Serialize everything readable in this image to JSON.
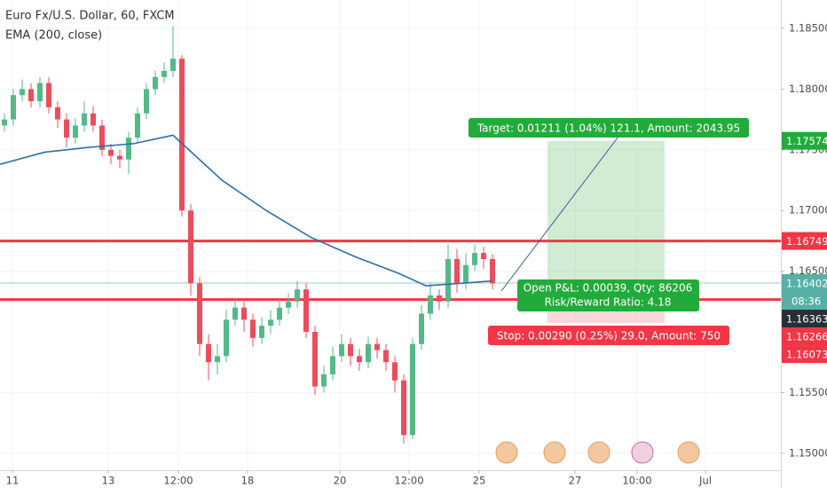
{
  "chart_data": {
    "type": "candlestick",
    "title": "Euro Fx/U.S. Dollar, 60, FXCM",
    "candles": {
      "up_color": "#53b987",
      "down_color": "#eb4d5c",
      "open": [
        1.177,
        1.1775,
        1.1795,
        1.18,
        1.179,
        1.1805,
        1.1785,
        1.1775,
        1.176,
        1.177,
        1.178,
        1.177,
        1.175,
        1.1745,
        1.1742,
        1.176,
        1.178,
        1.18,
        1.181,
        1.1815,
        1.1825,
        1.17,
        1.164,
        1.159,
        1.1575,
        1.158,
        1.161,
        1.162,
        1.161,
        1.1595,
        1.1605,
        1.161,
        1.162,
        1.1625,
        1.1635,
        1.16,
        1.1555,
        1.1565,
        1.158,
        1.159,
        1.158,
        1.1575,
        1.159,
        1.1585,
        1.1575,
        1.156,
        1.1515,
        1.159,
        1.1615,
        1.163,
        1.1625,
        1.166,
        1.164,
        1.1655,
        1.1665,
        1.166
      ],
      "high": [
        1.178,
        1.18,
        1.1808,
        1.1805,
        1.181,
        1.181,
        1.179,
        1.178,
        1.1776,
        1.179,
        1.1786,
        1.1775,
        1.1755,
        1.175,
        1.1765,
        1.1785,
        1.1805,
        1.1815,
        1.1822,
        1.1852,
        1.1828,
        1.1705,
        1.1645,
        1.1598,
        1.159,
        1.1618,
        1.1628,
        1.1625,
        1.1615,
        1.1612,
        1.1618,
        1.1628,
        1.1632,
        1.1642,
        1.164,
        1.1605,
        1.1572,
        1.1588,
        1.1598,
        1.1595,
        1.1586,
        1.1596,
        1.1595,
        1.159,
        1.158,
        1.1565,
        1.1595,
        1.1622,
        1.164,
        1.1635,
        1.1672,
        1.1668,
        1.1665,
        1.1672,
        1.167,
        1.1664
      ],
      "low": [
        1.1765,
        1.177,
        1.179,
        1.1785,
        1.1785,
        1.178,
        1.1768,
        1.1752,
        1.1755,
        1.1765,
        1.1765,
        1.1745,
        1.1738,
        1.1735,
        1.173,
        1.1755,
        1.1775,
        1.1795,
        1.1805,
        1.181,
        1.1695,
        1.163,
        1.158,
        1.156,
        1.1565,
        1.1575,
        1.1605,
        1.16,
        1.1588,
        1.159,
        1.1598,
        1.1605,
        1.1615,
        1.162,
        1.1595,
        1.1548,
        1.155,
        1.156,
        1.1575,
        1.1572,
        1.1568,
        1.157,
        1.1578,
        1.1568,
        1.155,
        1.1508,
        1.1512,
        1.1585,
        1.161,
        1.1618,
        1.162,
        1.1632,
        1.1635,
        1.165,
        1.1652,
        1.1635
      ],
      "close": [
        1.1775,
        1.1795,
        1.18,
        1.179,
        1.1805,
        1.1785,
        1.1775,
        1.176,
        1.177,
        1.178,
        1.177,
        1.175,
        1.1745,
        1.1742,
        1.176,
        1.178,
        1.18,
        1.181,
        1.1815,
        1.1825,
        1.17,
        1.164,
        1.159,
        1.1575,
        1.158,
        1.161,
        1.162,
        1.161,
        1.1595,
        1.1605,
        1.161,
        1.162,
        1.1625,
        1.1635,
        1.16,
        1.1555,
        1.1565,
        1.158,
        1.159,
        1.158,
        1.1575,
        1.159,
        1.1585,
        1.1575,
        1.156,
        1.1515,
        1.159,
        1.1615,
        1.163,
        1.1625,
        1.166,
        1.164,
        1.1655,
        1.1665,
        1.166,
        1.164
      ]
    },
    "ema": {
      "name": "EMA (200, close)",
      "color": "#2f6fa8",
      "x": [
        0,
        5,
        10,
        15,
        19.5,
        25,
        30,
        35,
        40,
        45,
        48,
        52,
        55.5
      ],
      "values": [
        1.1738,
        1.1748,
        1.1752,
        1.1755,
        1.1762,
        1.1725,
        1.17,
        1.1678,
        1.1662,
        1.1648,
        1.1638,
        1.164,
        1.1642
      ]
    },
    "xlim": [
      0,
      88
    ],
    "xticks": [
      {
        "value": 1.4,
        "label": "11"
      },
      {
        "value": 12.2,
        "label": "13"
      },
      {
        "value": 20.1,
        "label": "12:00"
      },
      {
        "value": 27.9,
        "label": "18"
      },
      {
        "value": 38.3,
        "label": "20"
      },
      {
        "value": 46.1,
        "label": "12:00"
      },
      {
        "value": 54.0,
        "label": "25"
      },
      {
        "value": 64.8,
        "label": "27"
      },
      {
        "value": 71.8,
        "label": "10:00"
      },
      {
        "value": 79.5,
        "label": "Jul"
      }
    ],
    "ylim": [
      1.1486,
      1.18734
    ],
    "yticks": [
      {
        "value": 1.185,
        "label": "1.18500"
      },
      {
        "value": 1.18,
        "label": "1.18000"
      },
      {
        "value": 1.175,
        "label": "1.17500"
      },
      {
        "value": 1.17,
        "label": "1.17000"
      },
      {
        "value": 1.165,
        "label": "1.16500"
      },
      {
        "value": 1.155,
        "label": "1.15500"
      },
      {
        "value": 1.15,
        "label": "1.15000"
      }
    ],
    "grid": true,
    "price_labels": [
      {
        "value": 1.17574,
        "color": "#22ab3a"
      },
      {
        "value": 1.16749,
        "color": "#f23645",
        "line": true
      },
      {
        "value": 1.16402,
        "color": "#56b0a6",
        "line": true
      },
      {
        "value": 1.16363,
        "color": "#2a2e39"
      },
      {
        "value": 1.16266,
        "color": "#f23645",
        "line": true
      },
      {
        "value": 1.16073,
        "color": "#f23645"
      }
    ],
    "countdown": "08:36",
    "position": {
      "target_label": "Target: 0.01211 (1.04%) 121.1, Amount: 2043.95",
      "pnl_label": "Open P&L: 0.00039, Qty: 86206",
      "rr_label": "Risk/Reward Ratio: 4.18",
      "stop_label": "Stop: 0.00290 (0.25%) 29.0, Amount: 750"
    }
  }
}
